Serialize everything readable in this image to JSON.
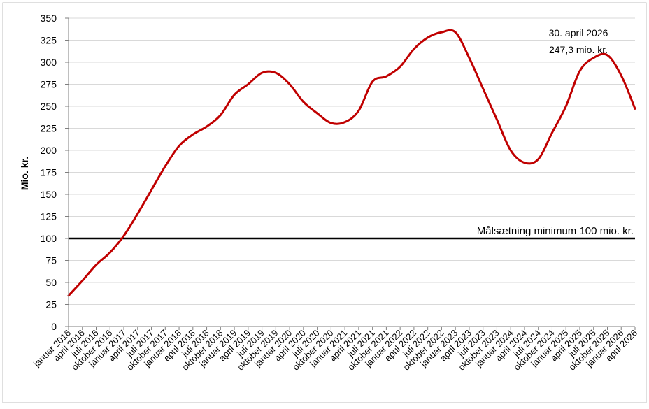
{
  "chart_data": {
    "type": "line",
    "ylabel": "Mio. kr.",
    "xlabel": "",
    "ylim": [
      0,
      350
    ],
    "yticks": [
      0,
      25,
      50,
      75,
      100,
      125,
      150,
      175,
      200,
      225,
      250,
      275,
      300,
      325,
      350
    ],
    "grid": "horizontal",
    "categories": [
      "januar 2016",
      "april 2016",
      "juli 2016",
      "oktober 2016",
      "januar 2017",
      "april 2017",
      "juli 2017",
      "oktober 2017",
      "januar 2018",
      "april 2018",
      "juli 2018",
      "oktober 2018",
      "januar 2019",
      "april 2019",
      "juli 2019",
      "oktober 2019",
      "januar 2020",
      "april 2020",
      "juli 2020",
      "oktober 2020",
      "januar 2021",
      "april 2021",
      "juli 2021",
      "oktober 2021",
      "januar 2022",
      "april 2022",
      "juli 2022",
      "oktober 2022",
      "januar 2023",
      "april 2023",
      "juli 2023",
      "oktober 2023",
      "januar 2024",
      "april 2024",
      "juli 2024",
      "oktober 2024",
      "januar 2025",
      "april 2025",
      "juli 2025",
      "oktober 2025",
      "januar 2026",
      "april 2026"
    ],
    "series": [
      {
        "color": "#c00000",
        "values": [
          35,
          52,
          70,
          84,
          103,
          128,
          155,
          182,
          205,
          218,
          227,
          240,
          263,
          275,
          288,
          288,
          275,
          255,
          242,
          231,
          232,
          245,
          278,
          284,
          295,
          315,
          328,
          334,
          334,
          305,
          270,
          235,
          200,
          186,
          190,
          220,
          250,
          290,
          305,
          308,
          285,
          247.3
        ]
      }
    ],
    "reference_line": {
      "value": 100,
      "label": "Målsætning minimum 100 mio. kr.",
      "color": "#000000"
    },
    "annotation": {
      "line1": "30. april 2026",
      "line2": "247,3 mio. kr."
    }
  }
}
